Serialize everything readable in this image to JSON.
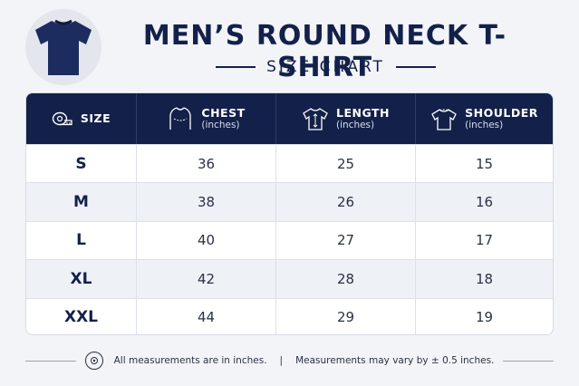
{
  "header": {
    "title": "MEN’S ROUND NECK T-SHIRT",
    "subtitle": "SIZE CHART"
  },
  "colors": {
    "navy": "#13214a",
    "background": "#f2f4f7",
    "row_alt": "#eef1f6"
  },
  "table": {
    "columns": [
      {
        "label": "SIZE",
        "unit": "",
        "icon": "measuring-tape-icon"
      },
      {
        "label": "CHEST",
        "unit": "(inches)",
        "icon": "chest-icon"
      },
      {
        "label": "LENGTH",
        "unit": "(inches)",
        "icon": "tshirt-length-icon"
      },
      {
        "label": "SHOULDER",
        "unit": "(inches)",
        "icon": "shoulder-icon"
      }
    ],
    "rows": [
      {
        "size": "S",
        "chest": "36",
        "length": "25",
        "shoulder": "15"
      },
      {
        "size": "M",
        "chest": "38",
        "length": "26",
        "shoulder": "16"
      },
      {
        "size": "L",
        "chest": "40",
        "length": "27",
        "shoulder": "17"
      },
      {
        "size": "XL",
        "chest": "42",
        "length": "28",
        "shoulder": "18"
      },
      {
        "size": "XXL",
        "chest": "44",
        "length": "29",
        "shoulder": "19"
      }
    ]
  },
  "footer": {
    "note1": "All measurements are in inches.",
    "separator": "|",
    "note2": "Measurements may vary by ± 0.5 inches."
  }
}
